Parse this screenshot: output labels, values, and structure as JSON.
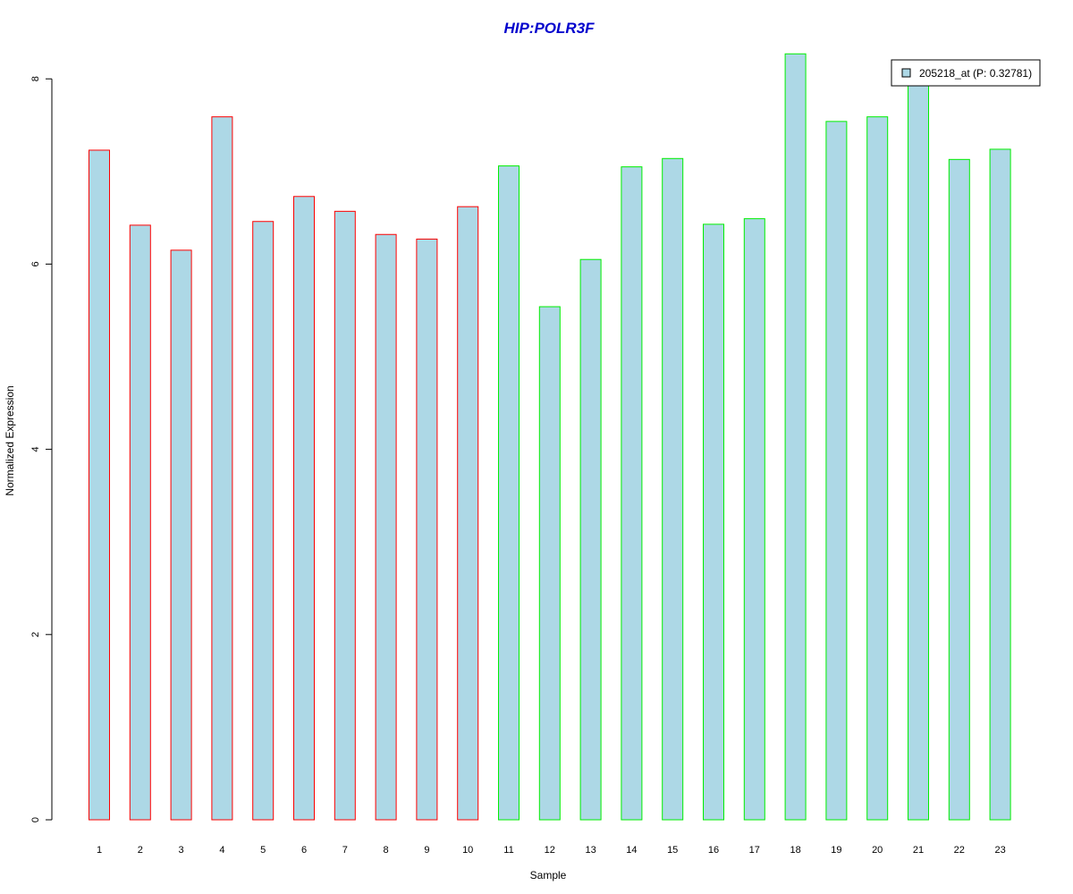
{
  "chart_data": {
    "type": "bar",
    "title": "HIP:POLR3F",
    "xlabel": "Sample",
    "ylabel": "Normalized Expression",
    "categories": [
      "1",
      "2",
      "3",
      "4",
      "5",
      "6",
      "7",
      "8",
      "9",
      "10",
      "11",
      "12",
      "13",
      "14",
      "15",
      "16",
      "17",
      "18",
      "19",
      "20",
      "21",
      "22",
      "23"
    ],
    "series": [
      {
        "name": "205218_at (P: 0.32781)",
        "values": [
          7.23,
          6.42,
          6.15,
          7.59,
          6.46,
          6.73,
          6.57,
          6.32,
          6.27,
          6.62,
          7.06,
          5.54,
          6.05,
          7.05,
          7.14,
          6.43,
          6.49,
          8.27,
          7.54,
          7.59,
          7.98,
          7.13,
          7.24
        ]
      }
    ],
    "groups": [
      {
        "samples": [
          1,
          2,
          3,
          4,
          5,
          6,
          7,
          8,
          9,
          10
        ],
        "border_color": "#ff0000"
      },
      {
        "samples": [
          11,
          12,
          13,
          14,
          15,
          16,
          17,
          18,
          19,
          20,
          21,
          22,
          23
        ],
        "border_color": "#00ee00"
      }
    ],
    "yticks": [
      0,
      2,
      4,
      6,
      8
    ],
    "ylim": [
      0,
      8.27
    ],
    "grid": false,
    "legend_position": "top-right",
    "colors": {
      "bar_fill": "#add8e6",
      "title": "#0000cd",
      "legend_swatch": "#add8e6"
    }
  }
}
